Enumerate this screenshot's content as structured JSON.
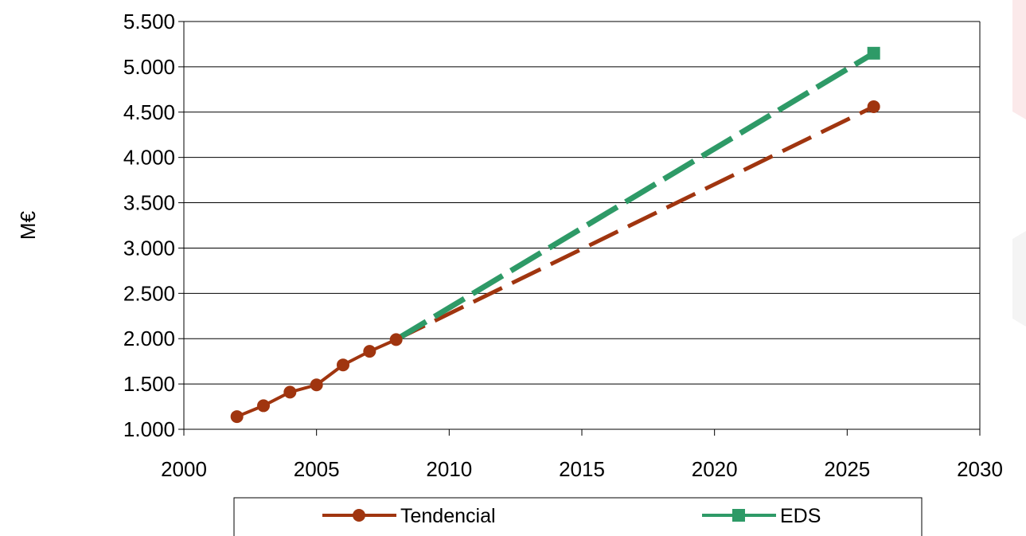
{
  "chart_data": {
    "type": "line",
    "title": "",
    "xlabel": "",
    "ylabel": "M€",
    "xlim": [
      2000,
      2030
    ],
    "ylim": [
      1000,
      5500
    ],
    "x_ticks": [
      "2000",
      "2005",
      "2010",
      "2015",
      "2020",
      "2025",
      "2030"
    ],
    "y_ticks": [
      "1.000",
      "1.500",
      "2.000",
      "2.500",
      "3.000",
      "3.500",
      "4.000",
      "4.500",
      "5.000",
      "5.500"
    ],
    "grid": "horizontal",
    "legend_position": "bottom",
    "series": [
      {
        "name": "Tendencial",
        "color": "#a0350f",
        "marker": "circle",
        "historical": [
          {
            "x": 2002,
            "y": 1140
          },
          {
            "x": 2003,
            "y": 1260
          },
          {
            "x": 2004,
            "y": 1410
          },
          {
            "x": 2005,
            "y": 1490
          },
          {
            "x": 2006,
            "y": 1710
          },
          {
            "x": 2007,
            "y": 1860
          },
          {
            "x": 2008,
            "y": 1990
          }
        ],
        "projection": [
          {
            "x": 2008,
            "y": 1990
          },
          {
            "x": 2026,
            "y": 4560
          }
        ]
      },
      {
        "name": "EDS",
        "color": "#2e9a67",
        "marker": "square",
        "historical": [],
        "projection": [
          {
            "x": 2008,
            "y": 1990
          },
          {
            "x": 2026,
            "y": 5150
          }
        ]
      }
    ]
  }
}
